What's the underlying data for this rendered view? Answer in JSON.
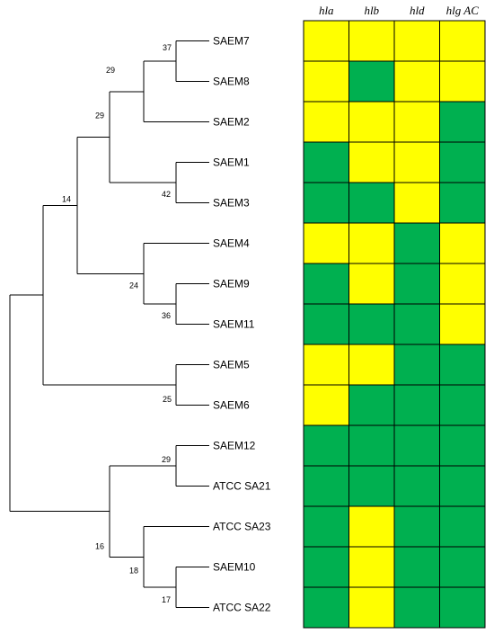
{
  "genes": [
    "hla",
    "hlb",
    "hld",
    "hlg AC"
  ],
  "strains": [
    "SAEM7",
    "SAEM8",
    "SAEM2",
    "SAEM1",
    "SAEM3",
    "SAEM4",
    "SAEM9",
    "SAEM11",
    "SAEM5",
    "SAEM6",
    "SAEM12",
    "ATCC SA21",
    "ATCC SA23",
    "SAEM10",
    "ATCC SA22"
  ],
  "state_colors": {
    "Y": "#ffff00",
    "G": "#00b050"
  },
  "matrix": [
    [
      "Y",
      "Y",
      "Y",
      "Y"
    ],
    [
      "Y",
      "G",
      "Y",
      "Y"
    ],
    [
      "Y",
      "Y",
      "Y",
      "G"
    ],
    [
      "G",
      "Y",
      "Y",
      "G"
    ],
    [
      "G",
      "G",
      "Y",
      "G"
    ],
    [
      "Y",
      "Y",
      "G",
      "Y"
    ],
    [
      "G",
      "Y",
      "G",
      "Y"
    ],
    [
      "G",
      "G",
      "G",
      "Y"
    ],
    [
      "Y",
      "Y",
      "G",
      "G"
    ],
    [
      "Y",
      "G",
      "G",
      "G"
    ],
    [
      "G",
      "G",
      "G",
      "G"
    ],
    [
      "G",
      "G",
      "G",
      "G"
    ],
    [
      "G",
      "Y",
      "G",
      "G"
    ],
    [
      "G",
      "Y",
      "G",
      "G"
    ],
    [
      "G",
      "Y",
      "G",
      "G"
    ]
  ],
  "support_values": {
    "n_37": "37",
    "n_29a": "29",
    "n_29b": "29",
    "n_42": "42",
    "n_14": "14",
    "n_24": "24",
    "n_36": "36",
    "n_25": "25",
    "n_29c": "29",
    "n_16": "16",
    "n_18": "18",
    "n_17": "17"
  }
}
